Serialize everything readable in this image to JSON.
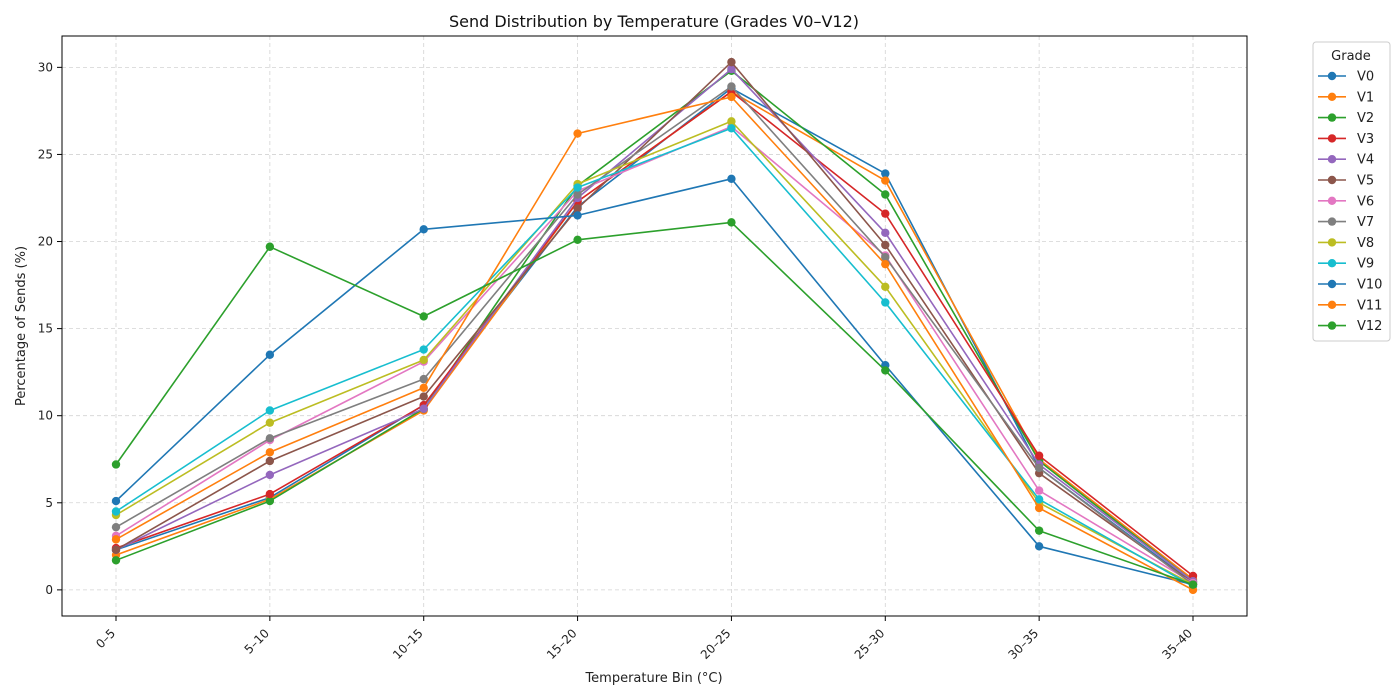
{
  "chart_data": {
    "type": "line",
    "title": "Send Distribution by Temperature (Grades V0–V12)",
    "xlabel": "Temperature Bin (°C)",
    "ylabel": "Percentage of Sends (%)",
    "categories": [
      "0–5",
      "5–10",
      "10–15",
      "15–20",
      "20–25",
      "25–30",
      "30–35",
      "35–40"
    ],
    "ylim": [
      -1.5,
      31.8
    ],
    "yticks": [
      0,
      5,
      10,
      15,
      20,
      25,
      30
    ],
    "grid": true,
    "legend": {
      "title": "Grade",
      "placement": "outside-top-right"
    },
    "series": [
      {
        "name": "V0",
        "color": "#1f77b4",
        "values": [
          2.3,
          5.3,
          10.6,
          22.0,
          28.8,
          23.9,
          7.0,
          0.4
        ]
      },
      {
        "name": "V1",
        "color": "#ff7f0e",
        "values": [
          2.0,
          5.2,
          10.3,
          22.3,
          28.6,
          23.5,
          7.5,
          0.6
        ]
      },
      {
        "name": "V2",
        "color": "#2ca02c",
        "values": [
          1.7,
          5.1,
          10.4,
          23.2,
          29.8,
          22.7,
          7.4,
          0.5
        ]
      },
      {
        "name": "V3",
        "color": "#d62728",
        "values": [
          2.4,
          5.5,
          10.6,
          22.3,
          28.6,
          21.6,
          7.7,
          0.8
        ]
      },
      {
        "name": "V4",
        "color": "#9467bd",
        "values": [
          2.3,
          6.6,
          10.4,
          22.5,
          29.9,
          20.5,
          7.2,
          0.5
        ]
      },
      {
        "name": "V5",
        "color": "#8c564b",
        "values": [
          2.3,
          7.4,
          11.1,
          21.9,
          30.3,
          19.8,
          6.7,
          0.4
        ]
      },
      {
        "name": "V6",
        "color": "#e377c2",
        "values": [
          3.1,
          8.6,
          13.1,
          22.9,
          26.6,
          19.2,
          5.7,
          0.4
        ]
      },
      {
        "name": "V7",
        "color": "#7f7f7f",
        "values": [
          3.6,
          8.7,
          12.1,
          22.7,
          28.9,
          19.1,
          7.0,
          0.3
        ]
      },
      {
        "name": "V8",
        "color": "#bcbd22",
        "values": [
          4.3,
          9.6,
          13.2,
          23.3,
          26.9,
          17.4,
          5.0,
          0.3
        ]
      },
      {
        "name": "V9",
        "color": "#17becf",
        "values": [
          4.5,
          10.3,
          13.8,
          23.1,
          26.5,
          16.5,
          5.2,
          0.2
        ]
      },
      {
        "name": "V10",
        "color": "#1f77b4",
        "values": [
          5.1,
          13.5,
          20.7,
          21.5,
          23.6,
          12.9,
          2.5,
          0.3
        ]
      },
      {
        "name": "V11",
        "color": "#ff7f0e",
        "values": [
          2.9,
          7.9,
          11.6,
          26.2,
          28.3,
          18.7,
          4.7,
          0.0
        ]
      },
      {
        "name": "V12",
        "color": "#2ca02c",
        "values": [
          7.2,
          19.7,
          15.7,
          20.1,
          21.1,
          12.6,
          3.4,
          0.3
        ]
      }
    ]
  }
}
